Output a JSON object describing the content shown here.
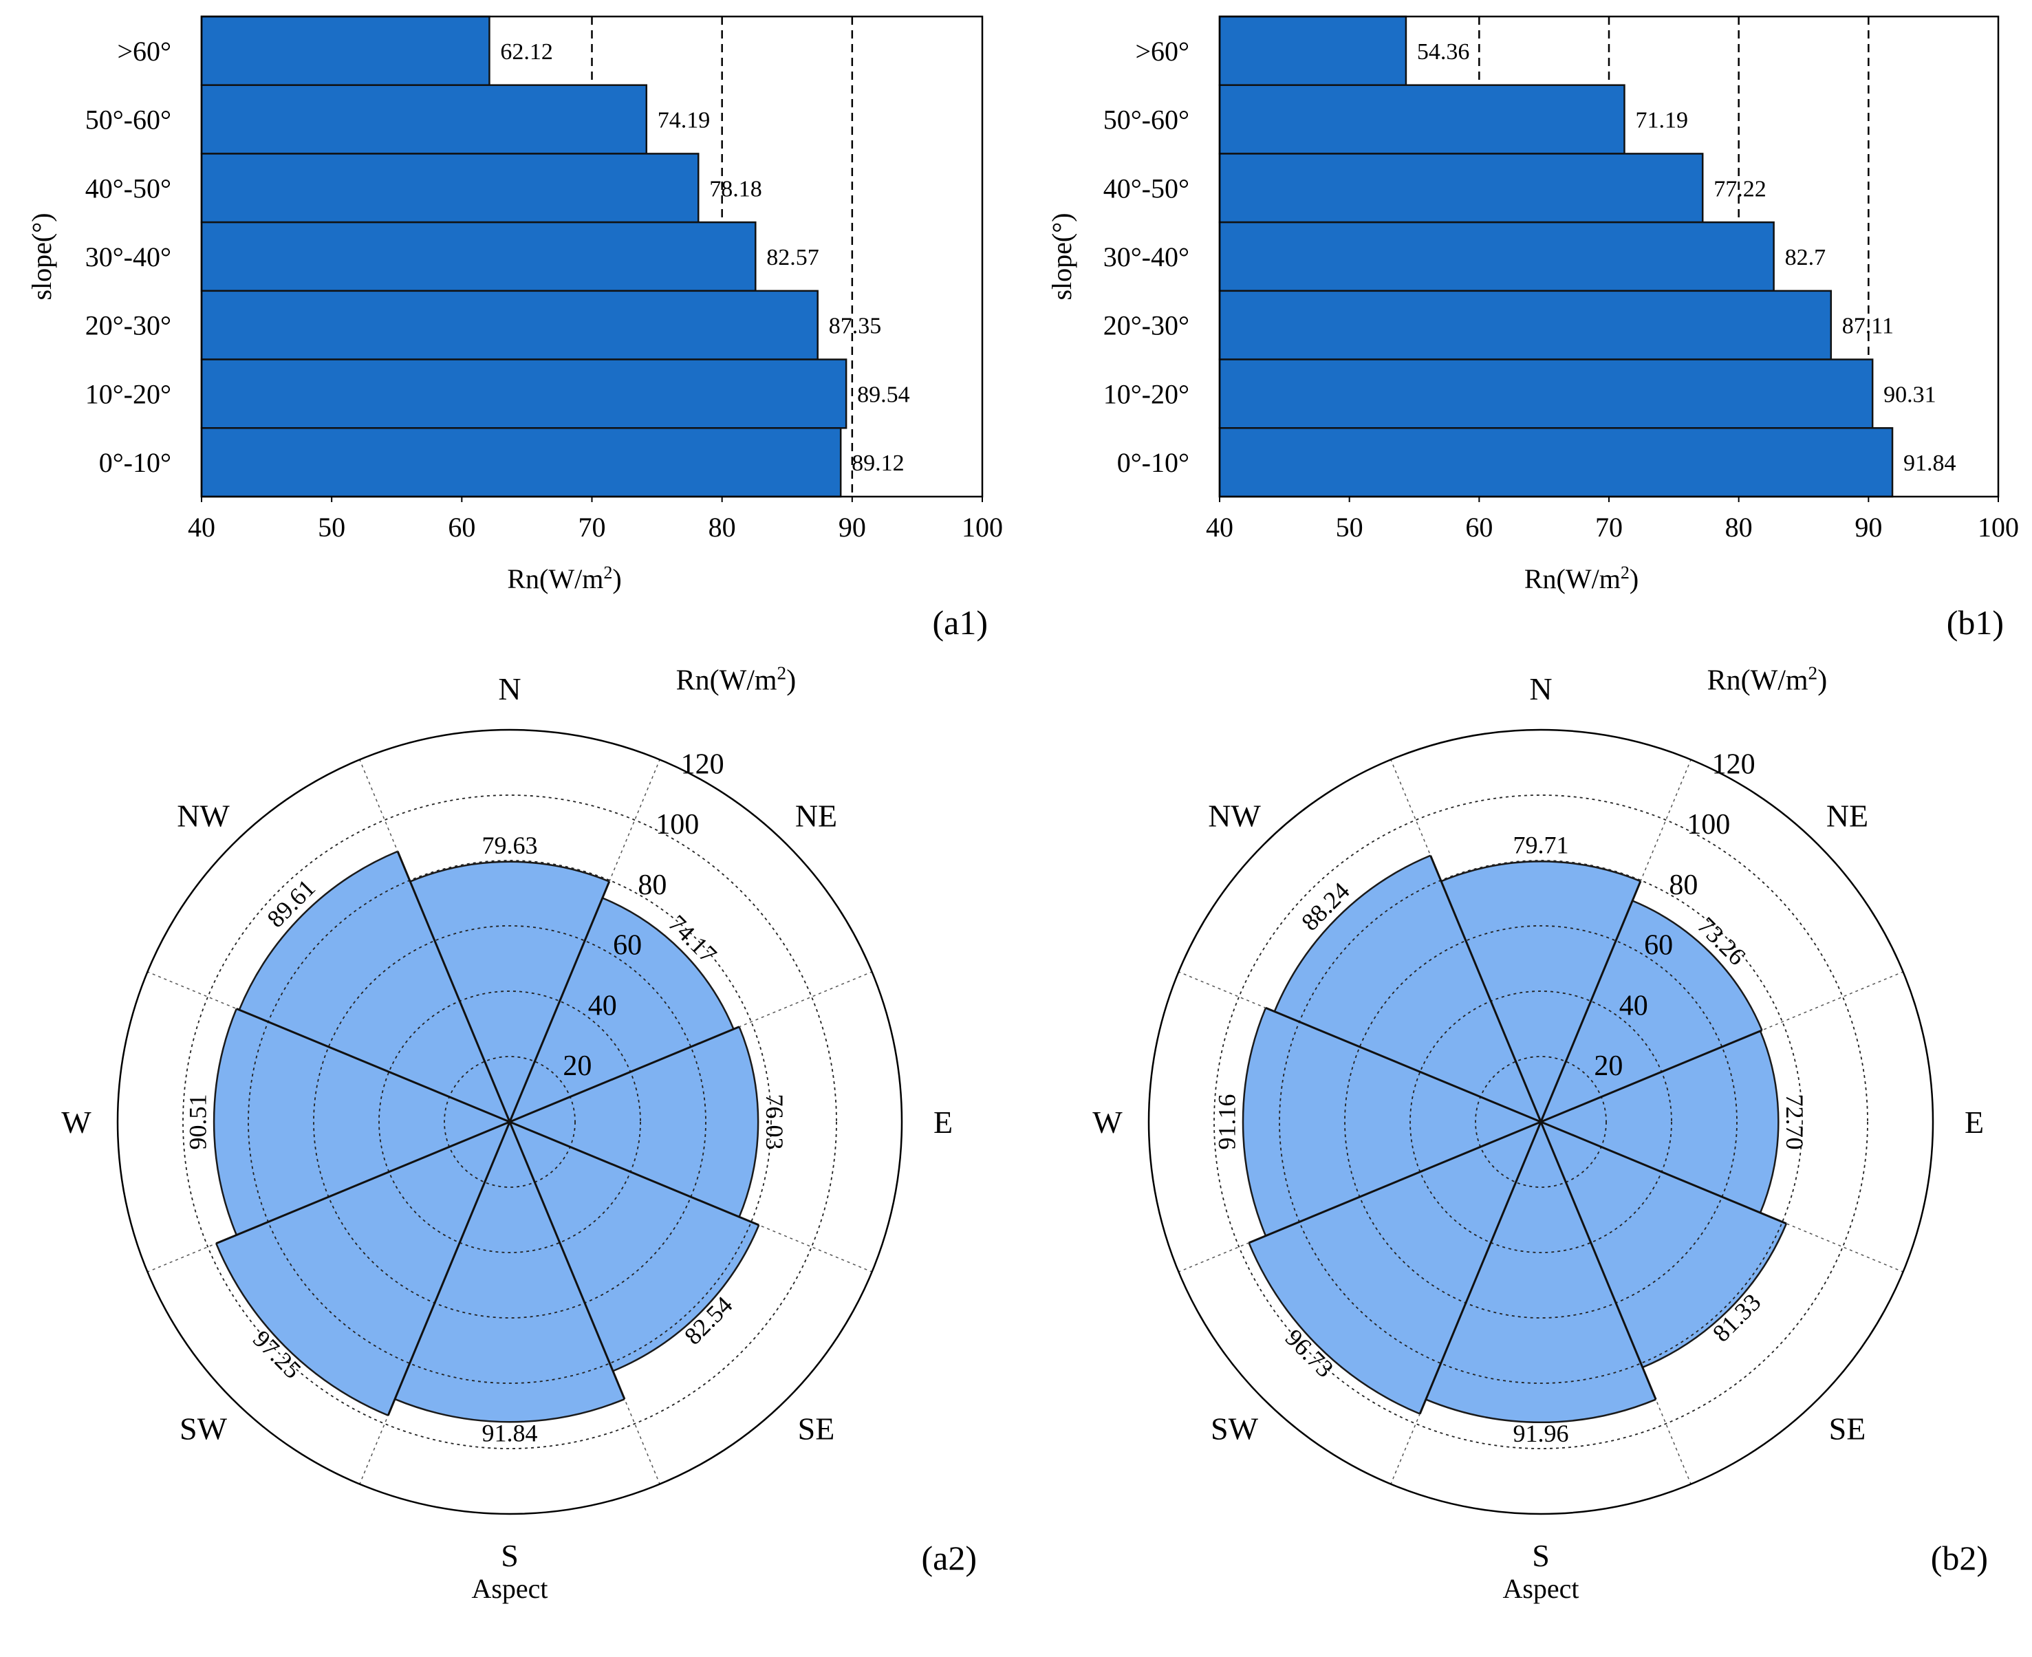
{
  "chart_data": [
    {
      "id": "a1",
      "type": "bar",
      "orientation": "horizontal",
      "panel_label": "(a1)",
      "ylabel": "slope(°)",
      "xlabel_parts": {
        "base": "Rn(W/m",
        "sup": "2",
        "end": ")"
      },
      "categories": [
        ">60°",
        "50°-60°",
        "40°-50°",
        "30°-40°",
        "20°-30°",
        "10°-20°",
        "0°-10°"
      ],
      "values": [
        62.12,
        74.19,
        78.18,
        82.57,
        87.35,
        89.54,
        89.12
      ],
      "value_labels": [
        "62.12",
        "74.19",
        "78.18",
        "82.57",
        "87.35",
        "89.54",
        "89.12"
      ],
      "xlim": [
        40,
        100
      ],
      "xticks": [
        40,
        50,
        60,
        70,
        80,
        90,
        100
      ],
      "xtick_labels": [
        "40",
        "50",
        "60",
        "70",
        "80",
        "90",
        "100"
      ],
      "reference_lines": [
        70,
        80,
        90
      ],
      "bar_color": "#1B6EC6"
    },
    {
      "id": "b1",
      "type": "bar",
      "orientation": "horizontal",
      "panel_label": "(b1)",
      "ylabel": "slope(°)",
      "xlabel_parts": {
        "base": "Rn(W/m",
        "sup": "2",
        "end": ")"
      },
      "categories": [
        ">60°",
        "50°-60°",
        "40°-50°",
        "30°-40°",
        "20°-30°",
        "10°-20°",
        "0°-10°"
      ],
      "values": [
        54.36,
        71.19,
        77.22,
        82.7,
        87.11,
        90.31,
        91.84
      ],
      "value_labels": [
        "54.36",
        "71.19",
        "77.22",
        "82.7",
        "87.11",
        "90.31",
        "91.84"
      ],
      "xlim": [
        40,
        100
      ],
      "xticks": [
        40,
        50,
        60,
        70,
        80,
        90,
        100
      ],
      "xtick_labels": [
        "40",
        "50",
        "60",
        "70",
        "80",
        "90",
        "100"
      ],
      "reference_lines": [
        60,
        70,
        80,
        90
      ],
      "bar_color": "#1B6EC6"
    },
    {
      "id": "a2",
      "type": "polar-bar",
      "panel_label": "(a2)",
      "xlabel": "Aspect",
      "radial_title_parts": {
        "base": "Rn(W/m",
        "sup": "2",
        "end": ")"
      },
      "directions": [
        "N",
        "NE",
        "E",
        "SE",
        "S",
        "SW",
        "W",
        "NW"
      ],
      "values": [
        79.63,
        74.17,
        76.03,
        82.54,
        91.84,
        97.25,
        90.51,
        89.61
      ],
      "value_labels": [
        "79.63",
        "74.17",
        "76.03",
        "82.54",
        "91.84",
        "97.25",
        "90.51",
        "89.61"
      ],
      "rlim": [
        0,
        120
      ],
      "rticks": [
        20,
        40,
        60,
        80,
        100,
        120
      ],
      "rtick_labels": [
        "20",
        "40",
        "60",
        "80",
        "100",
        "120"
      ],
      "fill_color": "#7FB2F2"
    },
    {
      "id": "b2",
      "type": "polar-bar",
      "panel_label": "(b2)",
      "xlabel": "Aspect",
      "radial_title_parts": {
        "base": "Rn(W/m",
        "sup": "2",
        "end": ")"
      },
      "directions": [
        "N",
        "NE",
        "E",
        "SE",
        "S",
        "SW",
        "W",
        "NW"
      ],
      "values": [
        79.71,
        73.26,
        72.7,
        81.33,
        91.96,
        96.73,
        91.16,
        88.24
      ],
      "value_labels": [
        "79.71",
        "73.26",
        "72.70",
        "81.33",
        "91.96",
        "96.73",
        "91.16",
        "88.24"
      ],
      "rlim": [
        0,
        120
      ],
      "rticks": [
        20,
        40,
        60,
        80,
        100,
        120
      ],
      "rtick_labels": [
        "20",
        "40",
        "60",
        "80",
        "100",
        "120"
      ],
      "fill_color": "#7FB2F2"
    }
  ]
}
